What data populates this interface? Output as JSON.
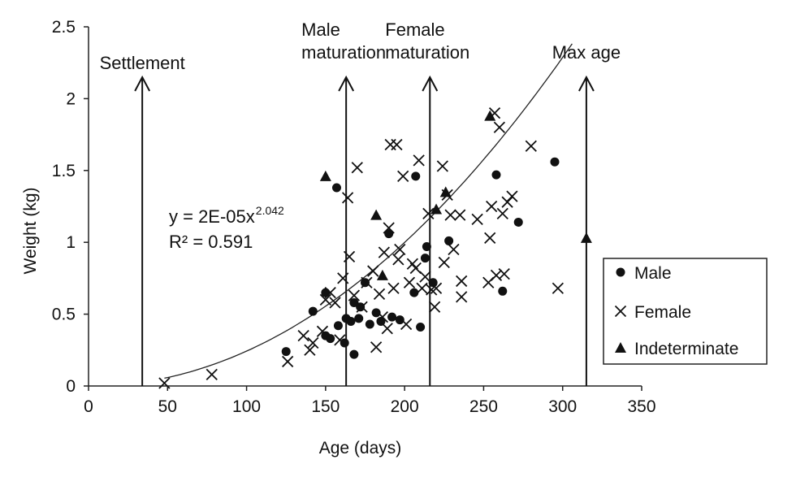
{
  "chart_data": {
    "type": "scatter",
    "xlabel": "Age (days)",
    "ylabel": "Weight (kg)",
    "xlim": [
      0,
      350
    ],
    "ylim": [
      0,
      2.5
    ],
    "x_ticks": [
      "0",
      "50",
      "100",
      "150",
      "200",
      "250",
      "300",
      "350"
    ],
    "y_ticks": [
      "0",
      "0.5",
      "1",
      "1.5",
      "2",
      "2.5"
    ],
    "grid": false,
    "legend_position": "bottom-right",
    "series": [
      {
        "name": "Male",
        "marker": "circle",
        "points": [
          [
            125,
            0.24
          ],
          [
            142,
            0.52
          ],
          [
            150,
            0.65
          ],
          [
            150,
            0.35
          ],
          [
            153,
            0.33
          ],
          [
            157,
            1.38
          ],
          [
            158,
            0.42
          ],
          [
            162,
            0.3
          ],
          [
            163,
            0.47
          ],
          [
            166,
            0.45
          ],
          [
            168,
            0.58
          ],
          [
            168,
            0.22
          ],
          [
            171,
            0.47
          ],
          [
            172,
            0.55
          ],
          [
            175,
            0.72
          ],
          [
            178,
            0.43
          ],
          [
            182,
            0.51
          ],
          [
            185,
            0.45
          ],
          [
            190,
            1.06
          ],
          [
            192,
            0.48
          ],
          [
            197,
            0.46
          ],
          [
            206,
            0.65
          ],
          [
            207,
            1.46
          ],
          [
            210,
            0.41
          ],
          [
            213,
            0.89
          ],
          [
            214,
            0.97
          ],
          [
            218,
            0.72
          ],
          [
            228,
            1.01
          ],
          [
            258,
            1.47
          ],
          [
            262,
            0.66
          ],
          [
            272,
            1.14
          ],
          [
            295,
            1.56
          ]
        ]
      },
      {
        "name": "Female",
        "marker": "x",
        "points": [
          [
            48,
            0.02
          ],
          [
            78,
            0.08
          ],
          [
            126,
            0.17
          ],
          [
            136,
            0.35
          ],
          [
            140,
            0.25
          ],
          [
            142,
            0.3
          ],
          [
            148,
            0.38
          ],
          [
            150,
            0.6
          ],
          [
            153,
            0.65
          ],
          [
            156,
            0.58
          ],
          [
            159,
            0.32
          ],
          [
            161,
            0.75
          ],
          [
            164,
            1.31
          ],
          [
            165,
            0.9
          ],
          [
            168,
            0.63
          ],
          [
            170,
            1.52
          ],
          [
            173,
            0.55
          ],
          [
            176,
            0.72
          ],
          [
            180,
            0.8
          ],
          [
            182,
            0.27
          ],
          [
            184,
            0.64
          ],
          [
            186,
            0.48
          ],
          [
            187,
            0.93
          ],
          [
            189,
            0.4
          ],
          [
            190,
            1.1
          ],
          [
            191,
            1.68
          ],
          [
            193,
            0.68
          ],
          [
            195,
            1.68
          ],
          [
            196,
            0.88
          ],
          [
            197,
            0.95
          ],
          [
            199,
            1.46
          ],
          [
            201,
            0.43
          ],
          [
            203,
            0.72
          ],
          [
            205,
            0.85
          ],
          [
            207,
            0.82
          ],
          [
            209,
            1.57
          ],
          [
            211,
            0.68
          ],
          [
            213,
            0.76
          ],
          [
            215,
            1.2
          ],
          [
            217,
            0.67
          ],
          [
            219,
            0.55
          ],
          [
            220,
            0.68
          ],
          [
            224,
            1.53
          ],
          [
            225,
            0.86
          ],
          [
            227,
            1.33
          ],
          [
            229,
            1.19
          ],
          [
            231,
            0.95
          ],
          [
            235,
            1.19
          ],
          [
            236,
            0.73
          ],
          [
            236,
            0.62
          ],
          [
            246,
            1.16
          ],
          [
            253,
            0.72
          ],
          [
            254,
            1.03
          ],
          [
            255,
            1.25
          ],
          [
            257,
            1.9
          ],
          [
            258,
            0.77
          ],
          [
            260,
            1.8
          ],
          [
            262,
            1.2
          ],
          [
            263,
            0.78
          ],
          [
            265,
            1.28
          ],
          [
            268,
            1.32
          ],
          [
            280,
            1.67
          ],
          [
            297,
            0.68
          ]
        ]
      },
      {
        "name": "Indeterminate",
        "marker": "triangle",
        "points": [
          [
            150,
            1.46
          ],
          [
            182,
            1.19
          ],
          [
            186,
            0.77
          ],
          [
            220,
            1.23
          ],
          [
            226,
            1.35
          ],
          [
            254,
            1.88
          ],
          [
            315,
            1.03
          ]
        ]
      }
    ],
    "trendline": {
      "equation": "y = 2E-05x",
      "exponent": "2.042",
      "r_squared": "R² = 0.591",
      "coefficient": 2e-05,
      "power": 2.042,
      "x_range": [
        48,
        306
      ]
    },
    "annotations": [
      {
        "x": 34,
        "label_lines": [
          "Settlement"
        ]
      },
      {
        "x": 163,
        "label_lines": [
          "Male",
          "maturation"
        ]
      },
      {
        "x": 216,
        "label_lines": [
          "Female",
          "maturation"
        ]
      },
      {
        "x": 315,
        "label_lines": [
          "Max age"
        ]
      }
    ]
  }
}
